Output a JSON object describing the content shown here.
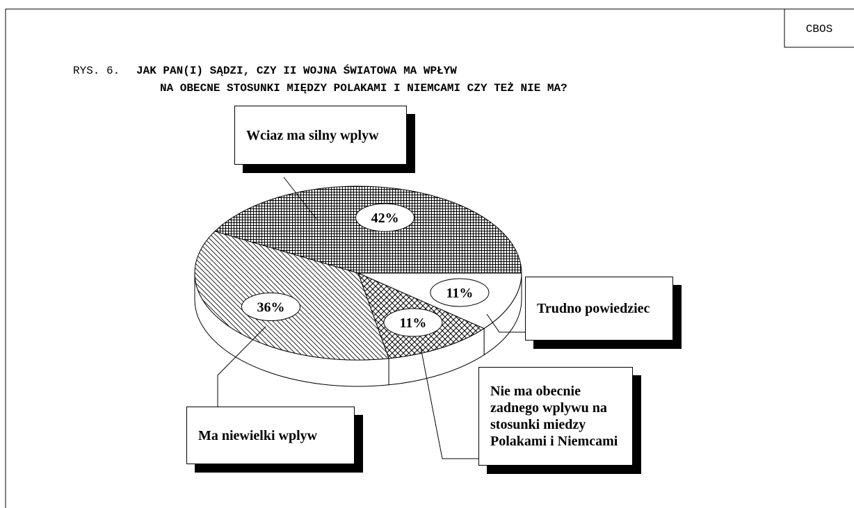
{
  "header": {
    "source": "CBOS"
  },
  "chart_data": {
    "type": "pie3d",
    "figure_label": "RYS. 6.",
    "title_lines": [
      "JAK PAN(I) SĄDZI, CZY II WOJNA ŚWIATOWA MA WPŁYW",
      "NA OBECNE STOSUNKI MIĘDZY POLAKAMI I NIEMCAMI CZY TEŻ NIE MA?"
    ],
    "categories": [
      "Trudno powiedziec",
      "Nie ma obecnie zadnego wplywu na stosunki miedzy Polakami i Niemcami",
      "Ma niewielki wplyw",
      "Wciaz ma silny wplyw"
    ],
    "values": [
      11,
      11,
      36,
      42
    ],
    "value_labels": [
      "11%",
      "11%",
      "36%",
      "42%"
    ]
  }
}
